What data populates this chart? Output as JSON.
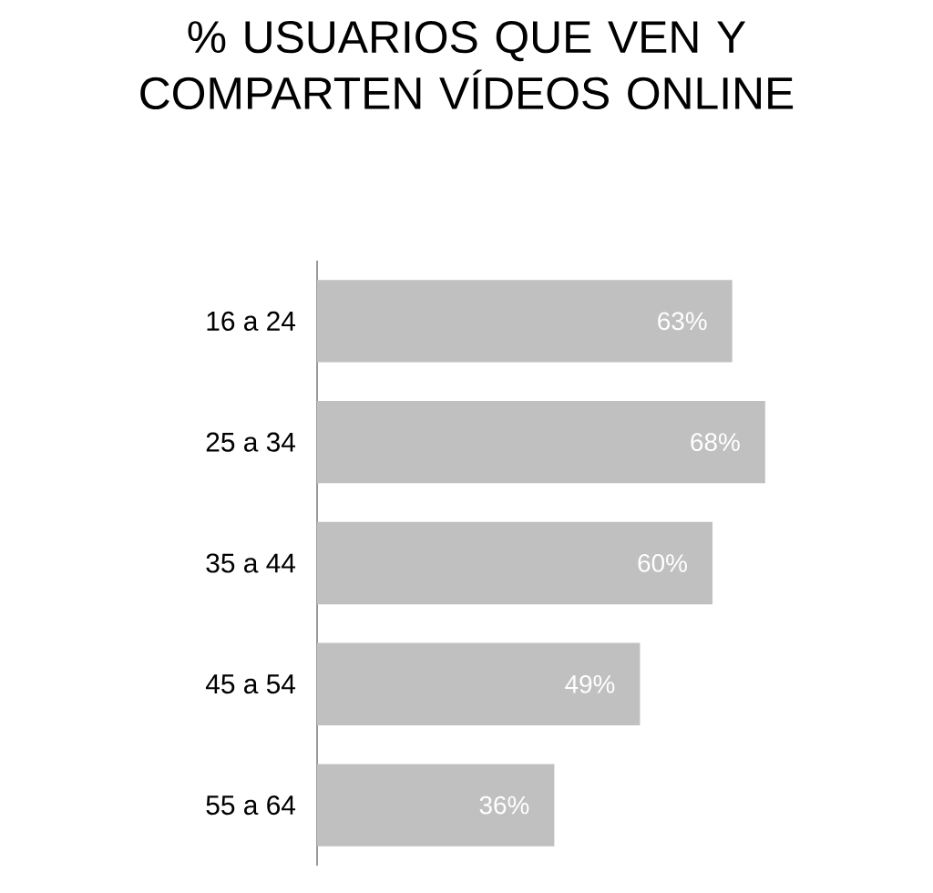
{
  "chart_data": {
    "type": "bar",
    "orientation": "horizontal",
    "title": "% USUARIOS QUE VEN Y COMPARTEN VÍDEOS ONLINE",
    "categories": [
      "16 a 24",
      "25 a 34",
      "35 a 44",
      "45 a 54",
      "55 a 64"
    ],
    "values": [
      63,
      68,
      60,
      49,
      36
    ],
    "value_labels": [
      "63%",
      "68%",
      "60%",
      "49%",
      "36%"
    ],
    "color": "#c0c0c0"
  }
}
